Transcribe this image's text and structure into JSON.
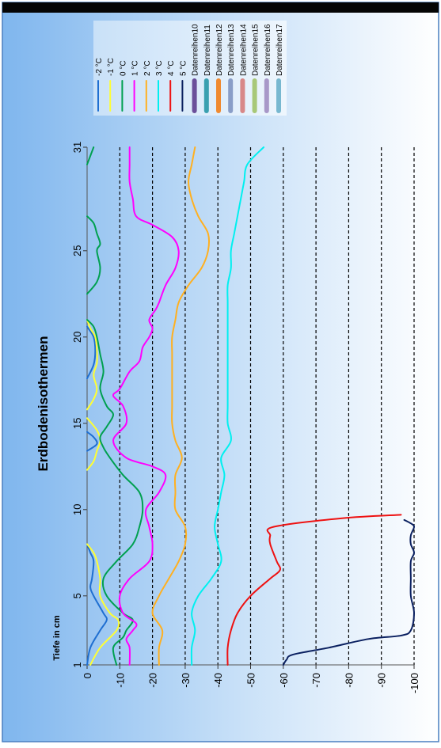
{
  "chart_data": {
    "type": "line",
    "title": "Erdbodenisothermen",
    "xlabel": "",
    "ylabel": "Tiefe in cm",
    "xlim": [
      1,
      31
    ],
    "ylim": [
      -100,
      0
    ],
    "x_ticks": [
      "1",
      "5",
      "10",
      "15",
      "20",
      "25",
      "31"
    ],
    "y_ticks": [
      "0",
      "-10",
      "-20",
      "-30",
      "-40",
      "-50",
      "-60",
      "-70",
      "-80",
      "-90",
      "-100"
    ],
    "grid": "dashed horizontal lines at 10 cm intervals",
    "legend_position": "top-right",
    "series": [
      {
        "name": "-2 °C",
        "color": "#1f6fd1",
        "segments": [
          [
            [
              1,
              0
            ],
            [
              2,
              -1
            ],
            [
              3,
              -4
            ],
            [
              3.6,
              -6
            ],
            [
              4,
              -5
            ],
            [
              5,
              -2
            ],
            [
              5.5,
              -1
            ],
            [
              6,
              -1.5
            ],
            [
              7,
              -2
            ],
            [
              7.5,
              -1
            ],
            [
              8,
              0
            ]
          ],
          [
            [
              13.4,
              0
            ],
            [
              13.8,
              -3
            ],
            [
              14.2,
              -2
            ],
            [
              14.5,
              0
            ]
          ],
          [
            [
              17.6,
              0
            ],
            [
              18.4,
              -2
            ],
            [
              19.2,
              -2.5
            ],
            [
              20,
              -2
            ],
            [
              20.6,
              0
            ]
          ]
        ]
      },
      {
        "name": "-1 °C",
        "color": "#ffff33",
        "segments": [
          [
            [
              1,
              -1
            ],
            [
              2,
              -4
            ],
            [
              3,
              -9
            ],
            [
              3.6,
              -9.5
            ],
            [
              4,
              -7
            ],
            [
              5,
              -4
            ],
            [
              6,
              -4
            ],
            [
              7,
              -3
            ],
            [
              7.5,
              -2
            ],
            [
              8,
              0
            ]
          ],
          [
            [
              12.3,
              0
            ],
            [
              12.8,
              -2
            ],
            [
              13.4,
              -3
            ],
            [
              14,
              -4
            ],
            [
              14.6,
              -3
            ],
            [
              15.3,
              0
            ]
          ],
          [
            [
              15.8,
              0
            ],
            [
              16.4,
              -2
            ],
            [
              17,
              -3
            ],
            [
              17.8,
              -2
            ],
            [
              18.5,
              -3
            ],
            [
              19.2,
              -3
            ],
            [
              20,
              -2.5
            ],
            [
              20.5,
              -1
            ],
            [
              21,
              0
            ]
          ]
        ]
      },
      {
        "name": "0 °C",
        "color": "#00a050",
        "segments": [
          [
            [
              1,
              -9
            ],
            [
              2,
              -8
            ],
            [
              2.6,
              -11
            ],
            [
              3,
              -12
            ],
            [
              3.6,
              -14
            ],
            [
              4,
              -11
            ],
            [
              5,
              -6
            ],
            [
              6,
              -5
            ],
            [
              7,
              -9
            ],
            [
              8,
              -14
            ],
            [
              9,
              -16
            ],
            [
              10,
              -17
            ],
            [
              11,
              -16
            ],
            [
              12,
              -11
            ],
            [
              13,
              -7
            ],
            [
              13.6,
              -5
            ],
            [
              14.2,
              -4
            ],
            [
              14.8,
              -6
            ],
            [
              15.5,
              -8
            ],
            [
              16,
              -6
            ],
            [
              17,
              -4
            ],
            [
              18,
              -5
            ],
            [
              19,
              -4
            ],
            [
              20,
              -3
            ],
            [
              20.6,
              -2
            ],
            [
              21,
              0
            ]
          ],
          [
            [
              22.5,
              0
            ],
            [
              23.2,
              -3
            ],
            [
              24,
              -4
            ],
            [
              25,
              -3
            ],
            [
              25.4,
              -4
            ],
            [
              26,
              -3
            ],
            [
              26.6,
              -2
            ],
            [
              27,
              0
            ]
          ],
          [
            [
              30,
              0
            ],
            [
              31,
              -2
            ]
          ]
        ]
      },
      {
        "name": "1 °C",
        "color": "#ff00ff",
        "segments": [
          [
            [
              1,
              -13
            ],
            [
              2,
              -13
            ],
            [
              2.5,
              -12
            ],
            [
              3,
              -14
            ],
            [
              3.4,
              -15
            ],
            [
              4,
              -11
            ],
            [
              5,
              -10
            ],
            [
              6,
              -13
            ],
            [
              7,
              -19
            ],
            [
              8,
              -20
            ],
            [
              9,
              -19
            ],
            [
              10,
              -18
            ],
            [
              11,
              -22
            ],
            [
              12,
              -24
            ],
            [
              12.5,
              -20
            ],
            [
              13,
              -12
            ],
            [
              14,
              -8
            ],
            [
              15,
              -12
            ],
            [
              16,
              -11
            ],
            [
              16.6,
              -8
            ],
            [
              17,
              -10
            ],
            [
              18,
              -13
            ],
            [
              18.6,
              -16
            ],
            [
              19.4,
              -17
            ],
            [
              20,
              -19
            ],
            [
              20.5,
              -20
            ],
            [
              21,
              -19
            ],
            [
              21.6,
              -21
            ],
            [
              22,
              -22
            ],
            [
              23,
              -24
            ],
            [
              24,
              -27
            ],
            [
              25,
              -28
            ],
            [
              25.8,
              -26
            ],
            [
              26.5,
              -20
            ],
            [
              27,
              -15
            ],
            [
              28,
              -14
            ],
            [
              29,
              -13
            ],
            [
              30,
              -13
            ],
            [
              31,
              -13
            ]
          ]
        ]
      },
      {
        "name": "2 °C",
        "color": "#ffb020",
        "segments": [
          [
            [
              1,
              -22
            ],
            [
              2,
              -22
            ],
            [
              3,
              -23
            ],
            [
              4,
              -20
            ],
            [
              5,
              -22
            ],
            [
              6,
              -25
            ],
            [
              7,
              -28
            ],
            [
              8,
              -30
            ],
            [
              9,
              -30
            ],
            [
              10,
              -27
            ],
            [
              11,
              -27
            ],
            [
              12,
              -27
            ],
            [
              13,
              -29
            ],
            [
              14,
              -27
            ],
            [
              15,
              -26
            ],
            [
              16,
              -26
            ],
            [
              17,
              -26
            ],
            [
              18,
              -26
            ],
            [
              19,
              -26
            ],
            [
              20,
              -26
            ],
            [
              21,
              -27
            ],
            [
              22,
              -28
            ],
            [
              23,
              -31
            ],
            [
              24,
              -35
            ],
            [
              25,
              -37
            ],
            [
              26,
              -37
            ],
            [
              27,
              -34
            ],
            [
              28,
              -32
            ],
            [
              29,
              -31
            ],
            [
              30,
              -32
            ],
            [
              31,
              -33
            ]
          ]
        ]
      },
      {
        "name": "3 °C",
        "color": "#00f0f0",
        "segments": [
          [
            [
              1,
              -32
            ],
            [
              2,
              -32
            ],
            [
              3,
              -33
            ],
            [
              4,
              -32
            ],
            [
              5,
              -34
            ],
            [
              6,
              -38
            ],
            [
              7,
              -41
            ],
            [
              8,
              -40
            ],
            [
              9,
              -39
            ],
            [
              10,
              -40
            ],
            [
              11,
              -41
            ],
            [
              12,
              -42
            ],
            [
              13,
              -41
            ],
            [
              14,
              -44
            ],
            [
              15,
              -43
            ],
            [
              16,
              -43
            ],
            [
              17,
              -43
            ],
            [
              18,
              -43
            ],
            [
              19,
              -43
            ],
            [
              20,
              -43
            ],
            [
              21,
              -43
            ],
            [
              22,
              -43
            ],
            [
              23,
              -43
            ],
            [
              24,
              -44
            ],
            [
              25,
              -44
            ],
            [
              26,
              -45
            ],
            [
              27,
              -46
            ],
            [
              28,
              -47
            ],
            [
              29,
              -48
            ],
            [
              30,
              -49
            ],
            [
              31,
              -54
            ]
          ]
        ]
      },
      {
        "name": "4 °C",
        "color": "#ee1111",
        "segments": [
          [
            [
              1,
              -43
            ],
            [
              2,
              -43
            ],
            [
              3,
              -44
            ],
            [
              4,
              -46
            ],
            [
              5,
              -50
            ],
            [
              6,
              -56
            ],
            [
              6.5,
              -59
            ],
            [
              7,
              -58
            ],
            [
              8,
              -56
            ],
            [
              8.5,
              -56
            ],
            [
              9,
              -57
            ],
            [
              9.5,
              -78
            ],
            [
              9.7,
              -96
            ]
          ]
        ]
      },
      {
        "name": "5 °C",
        "color": "#0a2060",
        "segments": [
          [
            [
              1,
              -60
            ],
            [
              1.3,
              -61
            ],
            [
              1.6,
              -63
            ],
            [
              2,
              -74
            ],
            [
              2.5,
              -86
            ],
            [
              2.7,
              -96
            ],
            [
              3,
              -99
            ],
            [
              4,
              -100
            ],
            [
              5,
              -99
            ],
            [
              6,
              -99
            ],
            [
              7,
              -99
            ],
            [
              7.5,
              -100
            ],
            [
              8,
              -99
            ],
            [
              8.5,
              -99
            ],
            [
              9,
              -100
            ],
            [
              9.2,
              -99
            ],
            [
              9.4,
              -97
            ]
          ]
        ]
      },
      {
        "name": "Datenreihen10",
        "color": "#6b4f9a",
        "segments": []
      },
      {
        "name": "Datenreihen11",
        "color": "#3aa0b0",
        "segments": []
      },
      {
        "name": "Datenreihen12",
        "color": "#f08a30",
        "segments": []
      },
      {
        "name": "Datenreihen13",
        "color": "#8a9ec8",
        "segments": []
      },
      {
        "name": "Datenreihen14",
        "color": "#d88888",
        "segments": []
      },
      {
        "name": "Datenreihen15",
        "color": "#a8c878",
        "segments": []
      },
      {
        "name": "Datenreihen16",
        "color": "#a898c8",
        "segments": []
      },
      {
        "name": "Datenreihen17",
        "color": "#78b8d0",
        "segments": []
      }
    ]
  }
}
